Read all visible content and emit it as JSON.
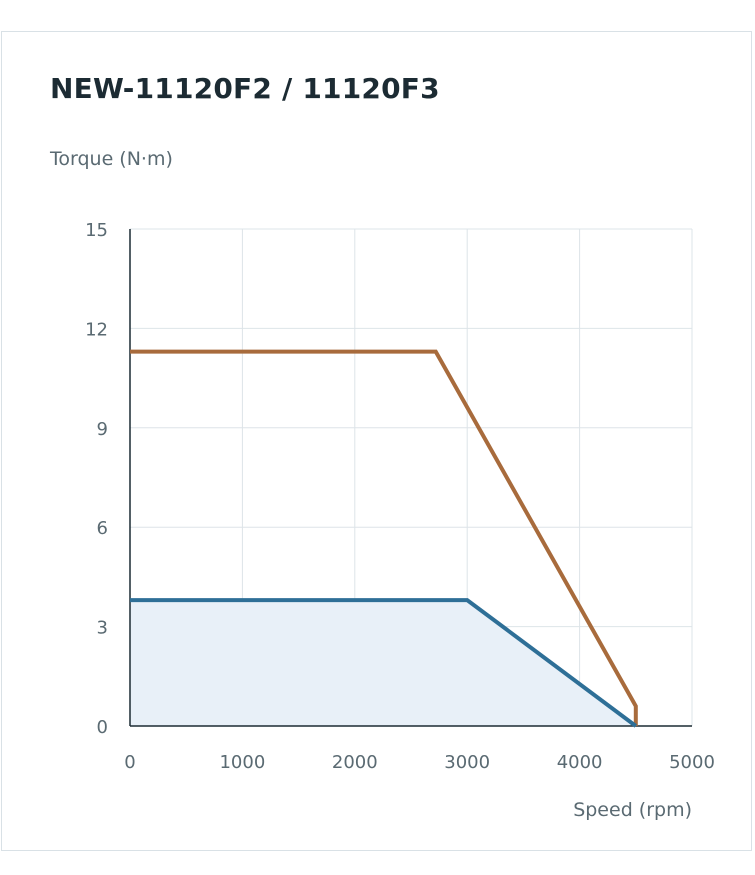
{
  "chart_data": {
    "type": "line",
    "title": "NEW-11120F2 / 11120F3",
    "ylabel": "Torque (N·m)",
    "xlabel": "Speed (rpm)",
    "xlim": [
      0,
      5000
    ],
    "ylim": [
      0,
      15
    ],
    "xticks": [
      0,
      1000,
      2000,
      3000,
      4000,
      5000
    ],
    "yticks": [
      0,
      3,
      6,
      9,
      12,
      15
    ],
    "grid": true,
    "series": [
      {
        "color": "#a86b3c",
        "fill": false,
        "x": [
          0,
          2720,
          4500,
          4500
        ],
        "y": [
          11.3,
          11.3,
          0.6,
          0
        ]
      },
      {
        "color": "#2e6f97",
        "fill": true,
        "fill_color": "#e8f0f8",
        "x": [
          0,
          3000,
          4500
        ],
        "y": [
          3.8,
          3.8,
          0
        ]
      }
    ]
  }
}
